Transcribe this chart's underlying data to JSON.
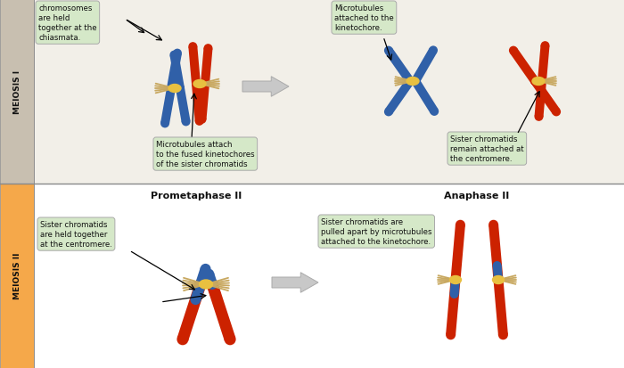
{
  "bg_top": "#f2efe8",
  "bg_bottom": "#ffffff",
  "sidebar_top_color": "#c8bfb0",
  "sidebar_bottom_color": "#f5a84a",
  "sidebar_top_text": "MEIOSIS I",
  "sidebar_bottom_text": "MEIOSIS II",
  "title_prometaphase2": "Prometaphase II",
  "title_anaphase2": "Anaphase II",
  "blue_color": "#3060a8",
  "red_color": "#cc2200",
  "centromere_color": "#e8c040",
  "microtubule_color": "#c8a860",
  "label_bg": "#d5e8c8",
  "sep_line": "#999999",
  "ann_tl": "chromosomes\nare held\ntogether at the\nchiasmata.",
  "ann_tm": "Microtubules\nattached to the\nkinetochore.",
  "ann_tb": "Microtubules attach\nto the fused kinetochores\nof the sister chromatids",
  "ann_tr": "Sister chromatids\nremain attached at\nthe centromere.",
  "ann_bl": "Sister chromatids\nare held together\nat the centromere.",
  "ann_br": "Sister chromatids are\npulled apart by microtubules\nattached to the kinetochore."
}
